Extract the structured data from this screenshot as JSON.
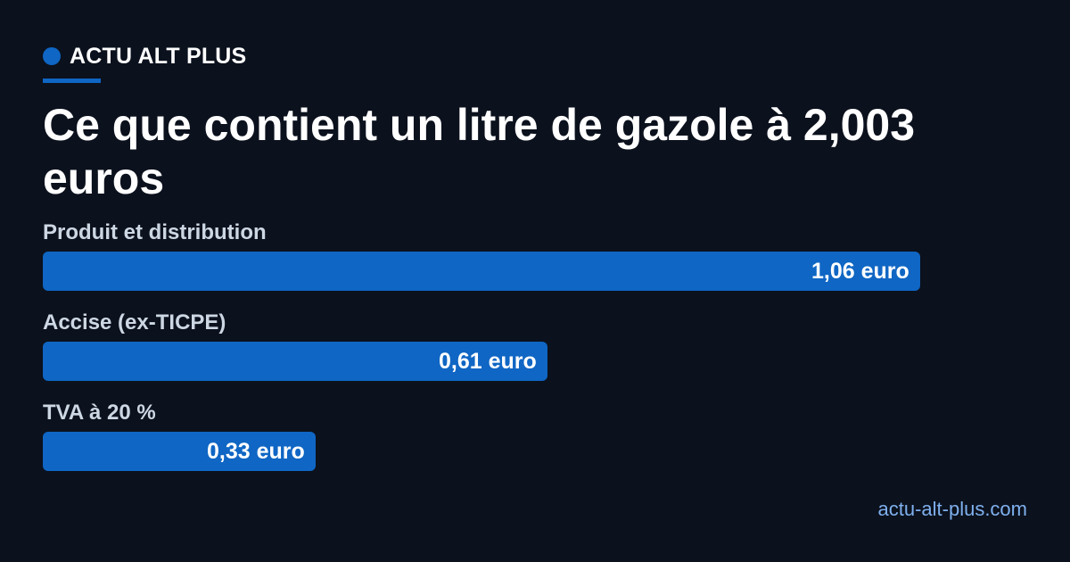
{
  "brand": {
    "name": "ACTU ALT PLUS"
  },
  "title": "Ce que contient un litre de gazole à 2,003 euros",
  "footer": {
    "site": "actu-alt-plus.com"
  },
  "colors": {
    "background": "#0b111d",
    "accent": "#0f66c4",
    "label": "#cdd7e4",
    "site": "#7fb0ee"
  },
  "chart_data": {
    "type": "bar",
    "orientation": "horizontal",
    "categories": [
      "Produit et distribution",
      "Accise (ex-TICPE)",
      "TVA à 20 %"
    ],
    "values": [
      1.06,
      0.61,
      0.33
    ],
    "value_labels": [
      "1,06 euro",
      "0,61 euro",
      "0,33 euro"
    ],
    "xlim": [
      0,
      1.06
    ],
    "grid": false
  }
}
